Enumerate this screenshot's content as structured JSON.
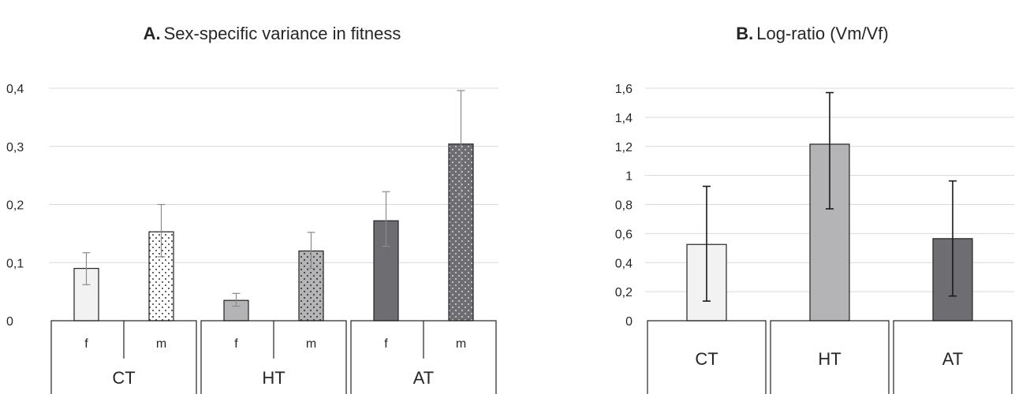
{
  "chart_data": [
    {
      "type": "bar",
      "title_prefix": "A.",
      "title": "Sex-specific variance in fitness",
      "groups": [
        "CT",
        "HT",
        "AT"
      ],
      "categories": [
        "f",
        "m",
        "f",
        "m",
        "f",
        "m"
      ],
      "values": [
        0.09,
        0.153,
        0.035,
        0.12,
        0.172,
        0.304
      ],
      "error_low": [
        0.062,
        0.11,
        0.025,
        0.09,
        0.128,
        0.215
      ],
      "error_high": [
        0.117,
        0.2,
        0.047,
        0.152,
        0.222,
        0.396
      ],
      "yticks": [
        "0",
        "0,1",
        "0,2",
        "0,3",
        "0,4"
      ],
      "ylim": [
        0,
        0.4
      ],
      "grid": true,
      "legend": "none",
      "fills": [
        "#f2f2f2",
        "#ffffff",
        "#b4b4b6",
        "#b4b4b6",
        "#6e6e72",
        "#6e6e72"
      ],
      "patterned": [
        false,
        true,
        false,
        true,
        false,
        true
      ],
      "error_color": "#8a8a8a"
    },
    {
      "type": "bar",
      "title_prefix": "B.",
      "title": "Log-ratio (Vm/Vf)",
      "categories": [
        "CT",
        "HT",
        "AT"
      ],
      "values": [
        0.525,
        1.215,
        0.565
      ],
      "error_low": [
        0.135,
        0.77,
        0.17
      ],
      "error_high": [
        0.925,
        1.57,
        0.962
      ],
      "yticks": [
        "0",
        "0,2",
        "0,4",
        "0,6",
        "0,8",
        "1",
        "1,2",
        "1,4",
        "1,6"
      ],
      "ylim": [
        0,
        1.6
      ],
      "grid": true,
      "legend": "none",
      "fills": [
        "#f2f2f2",
        "#b4b4b6",
        "#6e6e72"
      ],
      "error_color": "#1a1a1a"
    }
  ]
}
